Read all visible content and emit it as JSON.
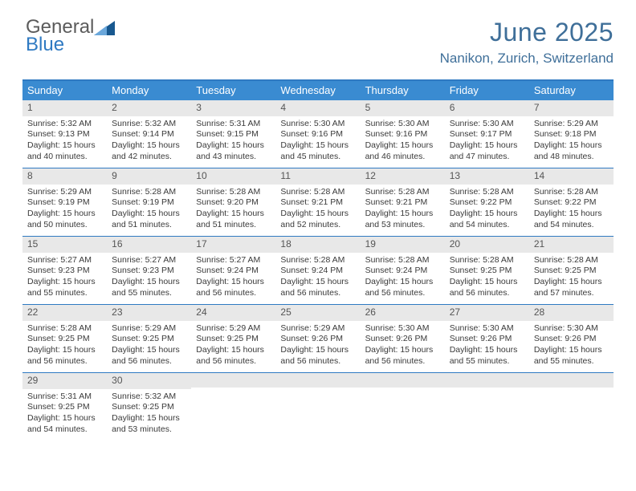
{
  "brand": {
    "line1": "General",
    "line2": "Blue"
  },
  "title": "June 2025",
  "location": "Nanikon, Zurich, Switzerland",
  "colors": {
    "header_bar": "#3a8bd1",
    "border": "#2f7ac2",
    "daynum_bg": "#e8e8e8",
    "title_color": "#3f6f99",
    "tri_light": "#6aa7db",
    "tri_dark": "#18588f"
  },
  "dow": [
    "Sunday",
    "Monday",
    "Tuesday",
    "Wednesday",
    "Thursday",
    "Friday",
    "Saturday"
  ],
  "weeks": [
    [
      {
        "n": "1",
        "sr": "5:32 AM",
        "ss": "9:13 PM",
        "dl": "15 hours and 40 minutes."
      },
      {
        "n": "2",
        "sr": "5:32 AM",
        "ss": "9:14 PM",
        "dl": "15 hours and 42 minutes."
      },
      {
        "n": "3",
        "sr": "5:31 AM",
        "ss": "9:15 PM",
        "dl": "15 hours and 43 minutes."
      },
      {
        "n": "4",
        "sr": "5:30 AM",
        "ss": "9:16 PM",
        "dl": "15 hours and 45 minutes."
      },
      {
        "n": "5",
        "sr": "5:30 AM",
        "ss": "9:16 PM",
        "dl": "15 hours and 46 minutes."
      },
      {
        "n": "6",
        "sr": "5:30 AM",
        "ss": "9:17 PM",
        "dl": "15 hours and 47 minutes."
      },
      {
        "n": "7",
        "sr": "5:29 AM",
        "ss": "9:18 PM",
        "dl": "15 hours and 48 minutes."
      }
    ],
    [
      {
        "n": "8",
        "sr": "5:29 AM",
        "ss": "9:19 PM",
        "dl": "15 hours and 50 minutes."
      },
      {
        "n": "9",
        "sr": "5:28 AM",
        "ss": "9:19 PM",
        "dl": "15 hours and 51 minutes."
      },
      {
        "n": "10",
        "sr": "5:28 AM",
        "ss": "9:20 PM",
        "dl": "15 hours and 51 minutes."
      },
      {
        "n": "11",
        "sr": "5:28 AM",
        "ss": "9:21 PM",
        "dl": "15 hours and 52 minutes."
      },
      {
        "n": "12",
        "sr": "5:28 AM",
        "ss": "9:21 PM",
        "dl": "15 hours and 53 minutes."
      },
      {
        "n": "13",
        "sr": "5:28 AM",
        "ss": "9:22 PM",
        "dl": "15 hours and 54 minutes."
      },
      {
        "n": "14",
        "sr": "5:28 AM",
        "ss": "9:22 PM",
        "dl": "15 hours and 54 minutes."
      }
    ],
    [
      {
        "n": "15",
        "sr": "5:27 AM",
        "ss": "9:23 PM",
        "dl": "15 hours and 55 minutes."
      },
      {
        "n": "16",
        "sr": "5:27 AM",
        "ss": "9:23 PM",
        "dl": "15 hours and 55 minutes."
      },
      {
        "n": "17",
        "sr": "5:27 AM",
        "ss": "9:24 PM",
        "dl": "15 hours and 56 minutes."
      },
      {
        "n": "18",
        "sr": "5:28 AM",
        "ss": "9:24 PM",
        "dl": "15 hours and 56 minutes."
      },
      {
        "n": "19",
        "sr": "5:28 AM",
        "ss": "9:24 PM",
        "dl": "15 hours and 56 minutes."
      },
      {
        "n": "20",
        "sr": "5:28 AM",
        "ss": "9:25 PM",
        "dl": "15 hours and 56 minutes."
      },
      {
        "n": "21",
        "sr": "5:28 AM",
        "ss": "9:25 PM",
        "dl": "15 hours and 57 minutes."
      }
    ],
    [
      {
        "n": "22",
        "sr": "5:28 AM",
        "ss": "9:25 PM",
        "dl": "15 hours and 56 minutes."
      },
      {
        "n": "23",
        "sr": "5:29 AM",
        "ss": "9:25 PM",
        "dl": "15 hours and 56 minutes."
      },
      {
        "n": "24",
        "sr": "5:29 AM",
        "ss": "9:25 PM",
        "dl": "15 hours and 56 minutes."
      },
      {
        "n": "25",
        "sr": "5:29 AM",
        "ss": "9:26 PM",
        "dl": "15 hours and 56 minutes."
      },
      {
        "n": "26",
        "sr": "5:30 AM",
        "ss": "9:26 PM",
        "dl": "15 hours and 56 minutes."
      },
      {
        "n": "27",
        "sr": "5:30 AM",
        "ss": "9:26 PM",
        "dl": "15 hours and 55 minutes."
      },
      {
        "n": "28",
        "sr": "5:30 AM",
        "ss": "9:26 PM",
        "dl": "15 hours and 55 minutes."
      }
    ],
    [
      {
        "n": "29",
        "sr": "5:31 AM",
        "ss": "9:25 PM",
        "dl": "15 hours and 54 minutes."
      },
      {
        "n": "30",
        "sr": "5:32 AM",
        "ss": "9:25 PM",
        "dl": "15 hours and 53 minutes."
      },
      null,
      null,
      null,
      null,
      null
    ]
  ],
  "labels": {
    "sunrise": "Sunrise:",
    "sunset": "Sunset:",
    "daylight": "Daylight:"
  }
}
